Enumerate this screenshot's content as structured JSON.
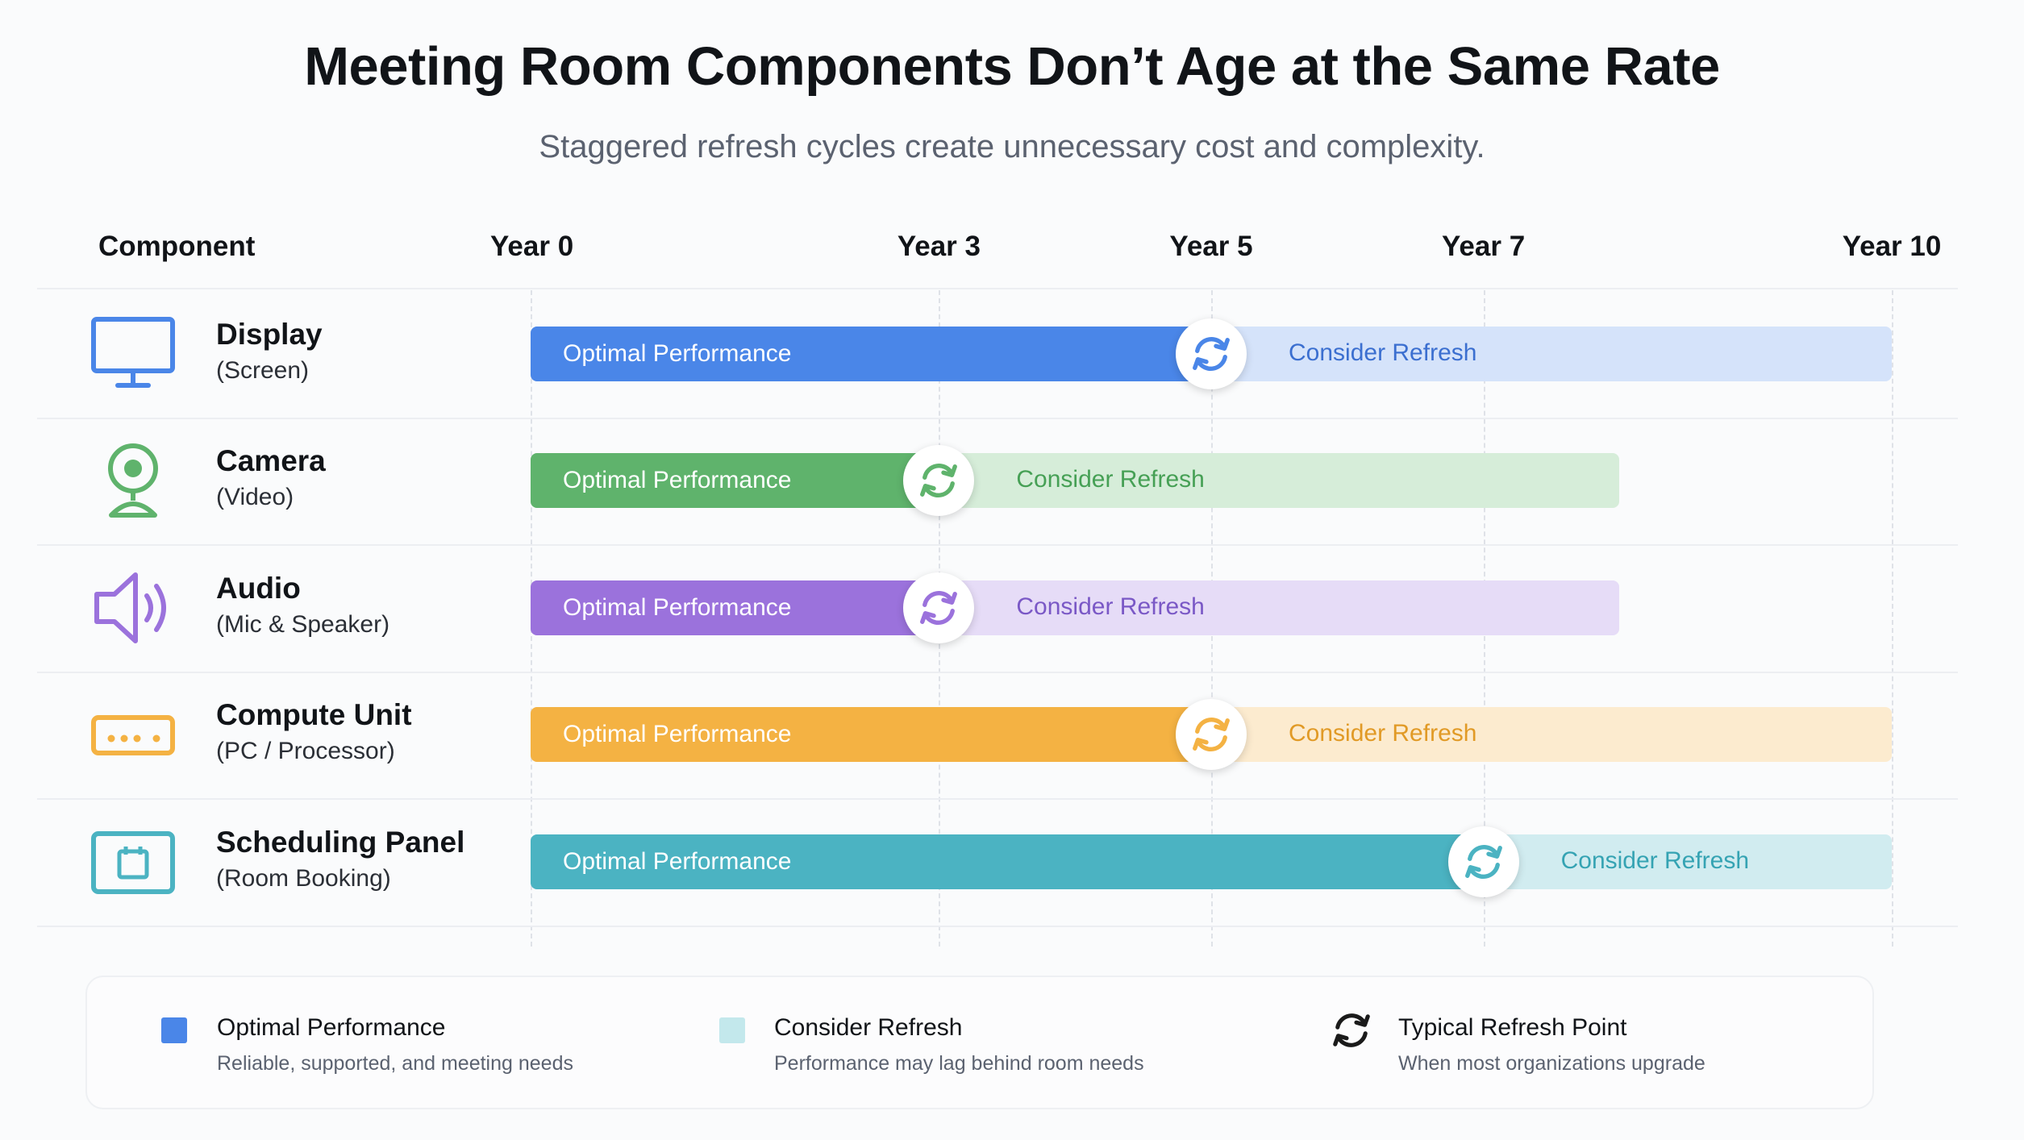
{
  "title": "Meeting Room Components Don’t Age at the Same Rate",
  "subtitle": "Staggered refresh cycles create unnecessary cost and complexity.",
  "column_header": "Component",
  "chart_data": {
    "type": "bar",
    "orientation": "horizontal-timeline",
    "x_axis": {
      "ticks": [
        0,
        3,
        5,
        7,
        10
      ],
      "tick_labels": [
        "Year 0",
        "Year 3",
        "Year 5",
        "Year 7",
        "Year 10"
      ],
      "range": [
        0,
        10
      ]
    },
    "segment_labels": {
      "optimal": "Optimal Performance",
      "refresh": "Consider Refresh"
    },
    "rows": [
      {
        "icon": "monitor-icon",
        "name": "Display",
        "sub": "(Screen)",
        "optimal_end": 5,
        "bar_end": 10,
        "color_dark": "#4a86e8",
        "color_light": "#d5e3fa",
        "color_text": "#3b6fd0"
      },
      {
        "icon": "webcam-icon",
        "name": "Camera",
        "sub": "(Video)",
        "optimal_end": 3,
        "bar_end": 8,
        "color_dark": "#5fb36c",
        "color_light": "#d6edd9",
        "color_text": "#46a055"
      },
      {
        "icon": "speaker-icon",
        "name": "Audio",
        "sub": "(Mic & Speaker)",
        "optimal_end": 3,
        "bar_end": 8,
        "color_dark": "#9b72dc",
        "color_light": "#e6dcf7",
        "color_text": "#7a58c6"
      },
      {
        "icon": "compute-unit-icon",
        "name": "Compute Unit",
        "sub": "(PC / Processor)",
        "optimal_end": 5,
        "bar_end": 10,
        "color_dark": "#f4b243",
        "color_light": "#fcebcf",
        "color_text": "#e19a26"
      },
      {
        "icon": "tablet-icon",
        "name": "Scheduling Panel",
        "sub": "(Room Booking)",
        "optimal_end": 7,
        "bar_end": 10,
        "color_dark": "#4bb3c2",
        "color_light": "#d1ecf0",
        "color_text": "#35a3b3"
      }
    ]
  },
  "legend": [
    {
      "kind": "swatch",
      "color": "#4a86e8",
      "title": "Optimal Performance",
      "desc": "Reliable, supported, and meeting needs"
    },
    {
      "kind": "swatch",
      "color": "#c3e8ec",
      "title": "Consider Refresh",
      "desc": "Performance may lag behind room needs"
    },
    {
      "kind": "icon",
      "icon": "refresh-icon",
      "title": "Typical Refresh Point",
      "desc": "When most organizations upgrade"
    }
  ]
}
